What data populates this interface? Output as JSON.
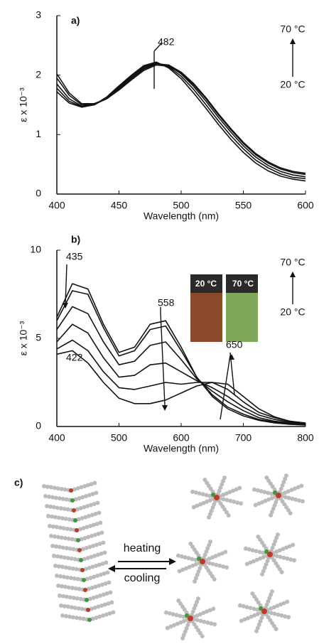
{
  "chart_data": [
    {
      "type": "line",
      "xlabel": "Wavelength (nm)",
      "ylabel": "ε x 10⁻³",
      "annotations": [
        "a)",
        "482",
        "70 °C",
        "20 °C"
      ],
      "x": [
        400,
        410,
        420,
        430,
        440,
        450,
        460,
        470,
        480,
        490,
        500,
        510,
        520,
        530,
        540,
        550,
        560,
        570,
        580,
        590,
        600
      ],
      "series": [
        {
          "color": "#111111",
          "values": [
            2.02,
            1.7,
            1.52,
            1.52,
            1.6,
            1.75,
            1.92,
            2.08,
            2.17,
            2.15,
            2.03,
            1.84,
            1.6,
            1.33,
            1.08,
            0.85,
            0.66,
            0.52,
            0.42,
            0.36,
            0.33
          ]
        },
        {
          "color": "#111111",
          "values": [
            1.95,
            1.66,
            1.5,
            1.51,
            1.6,
            1.76,
            1.94,
            2.1,
            2.19,
            2.17,
            2.05,
            1.86,
            1.62,
            1.35,
            1.1,
            0.87,
            0.68,
            0.54,
            0.44,
            0.38,
            0.35
          ]
        },
        {
          "color": "#111111",
          "values": [
            1.85,
            1.6,
            1.48,
            1.5,
            1.61,
            1.78,
            1.96,
            2.12,
            2.2,
            2.16,
            2.02,
            1.81,
            1.56,
            1.29,
            1.04,
            0.81,
            0.62,
            0.48,
            0.38,
            0.32,
            0.29
          ]
        },
        {
          "color": "#111111",
          "values": [
            1.78,
            1.56,
            1.47,
            1.5,
            1.62,
            1.8,
            1.98,
            2.14,
            2.21,
            2.14,
            1.98,
            1.76,
            1.5,
            1.23,
            0.98,
            0.76,
            0.57,
            0.44,
            0.34,
            0.28,
            0.26
          ]
        },
        {
          "color": "#111111",
          "values": [
            1.72,
            1.53,
            1.46,
            1.5,
            1.63,
            1.82,
            2.0,
            2.16,
            2.22,
            2.12,
            1.94,
            1.7,
            1.44,
            1.17,
            0.92,
            0.7,
            0.52,
            0.39,
            0.3,
            0.25,
            0.22
          ]
        }
      ],
      "xlim": [
        400,
        600
      ],
      "xticks": [
        400,
        450,
        500,
        550,
        600
      ],
      "ylim": [
        0,
        3
      ],
      "yticks": [
        0,
        1,
        2,
        3
      ]
    },
    {
      "type": "line",
      "xlabel": "Wavelength (nm)",
      "ylabel": "ε x 10⁻³",
      "annotations": [
        "b)",
        "435",
        "422",
        "558",
        "650",
        "70 °C",
        "20 °C",
        "20 °C",
        "70 °C"
      ],
      "x": [
        400,
        425,
        450,
        475,
        500,
        525,
        550,
        575,
        600,
        625,
        650,
        675,
        700,
        725,
        750,
        775,
        800
      ],
      "series": [
        {
          "color": "#111111",
          "values": [
            6.2,
            8.1,
            7.8,
            5.8,
            4.2,
            4.5,
            5.8,
            6.0,
            4.5,
            2.8,
            1.7,
            1.0,
            0.6,
            0.35,
            0.2,
            0.12,
            0.08
          ]
        },
        {
          "color": "#111111",
          "values": [
            6.0,
            7.7,
            7.5,
            5.6,
            4.0,
            4.3,
            5.5,
            5.7,
            4.3,
            2.8,
            1.8,
            1.1,
            0.7,
            0.4,
            0.25,
            0.15,
            0.1
          ]
        },
        {
          "color": "#111111",
          "values": [
            5.5,
            6.8,
            6.4,
            4.8,
            3.5,
            3.7,
            4.6,
            4.8,
            3.8,
            2.7,
            2.0,
            1.4,
            0.9,
            0.5,
            0.3,
            0.2,
            0.12
          ]
        },
        {
          "color": "#111111",
          "values": [
            4.8,
            5.8,
            5.3,
            3.9,
            2.8,
            2.9,
            3.5,
            3.6,
            3.1,
            2.6,
            2.2,
            1.7,
            1.1,
            0.65,
            0.4,
            0.25,
            0.15
          ]
        },
        {
          "color": "#111111",
          "values": [
            4.4,
            4.9,
            4.3,
            3.1,
            2.2,
            2.1,
            2.3,
            2.5,
            2.4,
            2.5,
            2.5,
            2.1,
            1.4,
            0.8,
            0.5,
            0.3,
            0.18
          ]
        },
        {
          "color": "#111111",
          "values": [
            4.1,
            4.3,
            3.6,
            2.5,
            1.6,
            1.3,
            1.3,
            1.5,
            1.9,
            2.3,
            2.5,
            2.4,
            1.7,
            1.0,
            0.55,
            0.3,
            0.2
          ]
        }
      ],
      "xlim": [
        400,
        800
      ],
      "xticks": [
        400,
        500,
        600,
        700,
        800
      ],
      "ylim": [
        0,
        10
      ],
      "yticks": [
        0,
        5,
        10
      ]
    }
  ],
  "diagram": {
    "label": "c)",
    "arrows": [
      "heating",
      "cooling"
    ]
  }
}
